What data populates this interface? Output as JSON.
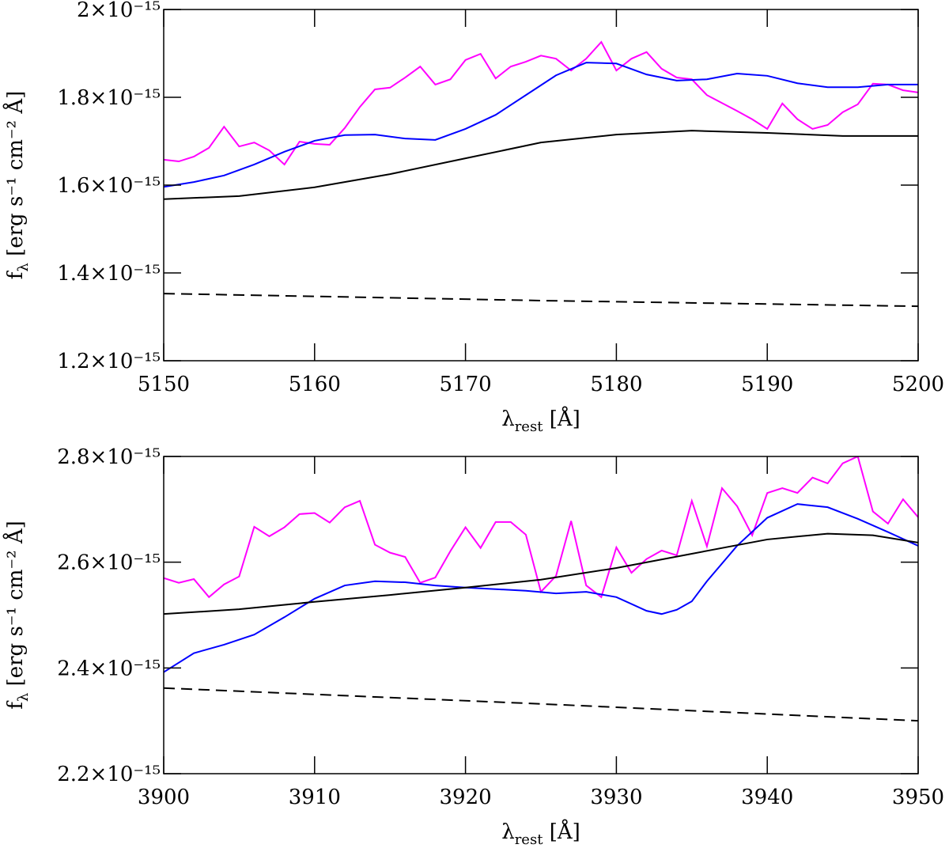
{
  "chart_data": [
    {
      "type": "line",
      "xlabel": {
        "symbol": "λ",
        "sub": "rest",
        "unit": " [Å]"
      },
      "ylabel": {
        "symbol": "f",
        "sub": "λ",
        "unit": " [erg s⁻¹ cm⁻² Å]"
      },
      "xlim": [
        5150,
        5200
      ],
      "xticks": [
        5150,
        5160,
        5170,
        5180,
        5190,
        5200
      ],
      "ylim": [
        1.2e-15,
        2e-15
      ],
      "yticks": [
        {
          "value": 1.2e-15,
          "label": "1.2×10⁻¹⁵"
        },
        {
          "value": 1.4e-15,
          "label": "1.4×10⁻¹⁵"
        },
        {
          "value": 1.6e-15,
          "label": "1.6×10⁻¹⁵"
        },
        {
          "value": 1.8e-15,
          "label": "1.8×10⁻¹⁵"
        },
        {
          "value": 2e-15,
          "label": "2×10⁻¹⁵"
        }
      ],
      "series": [
        {
          "color": "#ff00ff",
          "dashed": false,
          "x": [
            5150,
            5151,
            5152,
            5153,
            5154,
            5155,
            5156,
            5157,
            5158,
            5159,
            5160,
            5161,
            5162,
            5163,
            5164,
            5165,
            5166,
            5167,
            5168,
            5169,
            5170,
            5171,
            5172,
            5173,
            5174,
            5175,
            5176,
            5177,
            5178,
            5179,
            5180,
            5181,
            5182,
            5183,
            5184,
            5185,
            5186,
            5187,
            5188,
            5189,
            5190,
            5191,
            5192,
            5193,
            5194,
            5195,
            5196,
            5197,
            5198,
            5199,
            5200
          ],
          "values": [
            1.658e-15,
            1.654e-15,
            1.665e-15,
            1.685e-15,
            1.733e-15,
            1.688e-15,
            1.697e-15,
            1.679e-15,
            1.647e-15,
            1.699e-15,
            1.694e-15,
            1.692e-15,
            1.73e-15,
            1.778e-15,
            1.818e-15,
            1.822e-15,
            1.845e-15,
            1.87e-15,
            1.829e-15,
            1.841e-15,
            1.885e-15,
            1.899e-15,
            1.843e-15,
            1.87e-15,
            1.881e-15,
            1.895e-15,
            1.888e-15,
            1.861e-15,
            1.888e-15,
            1.926e-15,
            1.861e-15,
            1.888e-15,
            1.903e-15,
            1.865e-15,
            1.845e-15,
            1.841e-15,
            1.805e-15,
            1.787e-15,
            1.769e-15,
            1.75e-15,
            1.728e-15,
            1.786e-15,
            1.75e-15,
            1.728e-15,
            1.737e-15,
            1.766e-15,
            1.784e-15,
            1.831e-15,
            1.829e-15,
            1.816e-15,
            1.811e-15
          ]
        },
        {
          "color": "#0000ff",
          "dashed": false,
          "x": [
            5150,
            5152,
            5154,
            5156,
            5158,
            5160,
            5162,
            5164,
            5166,
            5168,
            5170,
            5172,
            5174,
            5176,
            5178,
            5180,
            5182,
            5184,
            5186,
            5188,
            5190,
            5192,
            5194,
            5196,
            5198,
            5200
          ],
          "values": [
            1.596e-15,
            1.607e-15,
            1.622e-15,
            1.647e-15,
            1.676e-15,
            1.701e-15,
            1.714e-15,
            1.715e-15,
            1.706e-15,
            1.703e-15,
            1.728e-15,
            1.76e-15,
            1.805e-15,
            1.85e-15,
            1.879e-15,
            1.877e-15,
            1.852e-15,
            1.838e-15,
            1.841e-15,
            1.854e-15,
            1.849e-15,
            1.832e-15,
            1.823e-15,
            1.823e-15,
            1.829e-15,
            1.829e-15
          ]
        },
        {
          "color": "#000000",
          "dashed": false,
          "x": [
            5150,
            5155,
            5160,
            5165,
            5170,
            5175,
            5180,
            5185,
            5190,
            5195,
            5200
          ],
          "values": [
            1.568e-15,
            1.575e-15,
            1.595e-15,
            1.625e-15,
            1.661e-15,
            1.697e-15,
            1.715e-15,
            1.724e-15,
            1.719e-15,
            1.712e-15,
            1.712e-15
          ]
        },
        {
          "color": "#000000",
          "dashed": true,
          "x": [
            5150,
            5175,
            5200
          ],
          "values": [
            1.353e-15,
            1.337e-15,
            1.324e-15
          ]
        }
      ]
    },
    {
      "type": "line",
      "xlabel": {
        "symbol": "λ",
        "sub": "rest",
        "unit": " [Å]"
      },
      "ylabel": {
        "symbol": "f",
        "sub": "λ",
        "unit": " [erg s⁻¹ cm⁻² Å]"
      },
      "xlim": [
        3900,
        3950
      ],
      "xticks": [
        3900,
        3910,
        3920,
        3930,
        3940,
        3950
      ],
      "ylim": [
        2.2e-15,
        2.8e-15
      ],
      "yticks": [
        {
          "value": 2.2e-15,
          "label": "2.2×10⁻¹⁵"
        },
        {
          "value": 2.4e-15,
          "label": "2.4×10⁻¹⁵"
        },
        {
          "value": 2.6e-15,
          "label": "2.6×10⁻¹⁵"
        },
        {
          "value": 2.8e-15,
          "label": "2.8×10⁻¹⁵"
        }
      ],
      "series": [
        {
          "color": "#ff00ff",
          "dashed": false,
          "x": [
            3900,
            3901,
            3902,
            3903,
            3904,
            3905,
            3906,
            3907,
            3908,
            3909,
            3910,
            3911,
            3912,
            3913,
            3914,
            3915,
            3916,
            3917,
            3918,
            3919,
            3920,
            3921,
            3922,
            3923,
            3924,
            3925,
            3926,
            3927,
            3928,
            3929,
            3930,
            3931,
            3932,
            3933,
            3934,
            3935,
            3936,
            3937,
            3938,
            3939,
            3940,
            3941,
            3942,
            3943,
            3944,
            3945,
            3946,
            3947,
            3948,
            3949,
            3950
          ],
          "values": [
            2.57e-15,
            2.561e-15,
            2.568e-15,
            2.534e-15,
            2.558e-15,
            2.573e-15,
            2.667e-15,
            2.649e-15,
            2.666e-15,
            2.691e-15,
            2.693e-15,
            2.675e-15,
            2.704e-15,
            2.716e-15,
            2.633e-15,
            2.618e-15,
            2.61e-15,
            2.561e-15,
            2.571e-15,
            2.621e-15,
            2.666e-15,
            2.627e-15,
            2.676e-15,
            2.676e-15,
            2.652e-15,
            2.544e-15,
            2.574e-15,
            2.678e-15,
            2.556e-15,
            2.534e-15,
            2.628e-15,
            2.58e-15,
            2.606e-15,
            2.622e-15,
            2.613e-15,
            2.716e-15,
            2.63e-15,
            2.74e-15,
            2.706e-15,
            2.651e-15,
            2.731e-15,
            2.74e-15,
            2.731e-15,
            2.76e-15,
            2.749e-15,
            2.787e-15,
            2.8e-15,
            2.696e-15,
            2.673e-15,
            2.719e-15,
            2.685e-15
          ]
        },
        {
          "color": "#0000ff",
          "dashed": false,
          "x": [
            3900,
            3902,
            3904,
            3906,
            3908,
            3910,
            3912,
            3914,
            3916,
            3918,
            3920,
            3922,
            3924,
            3926,
            3928,
            3930,
            3932,
            3933,
            3934,
            3935,
            3936,
            3938,
            3940,
            3942,
            3944,
            3946,
            3948,
            3950
          ],
          "values": [
            2.392e-15,
            2.428e-15,
            2.444e-15,
            2.463e-15,
            2.496e-15,
            2.531e-15,
            2.556e-15,
            2.564e-15,
            2.562e-15,
            2.556e-15,
            2.552e-15,
            2.549e-15,
            2.546e-15,
            2.541e-15,
            2.544e-15,
            2.534e-15,
            2.508e-15,
            2.502e-15,
            2.51e-15,
            2.526e-15,
            2.564e-15,
            2.631e-15,
            2.684e-15,
            2.71e-15,
            2.704e-15,
            2.682e-15,
            2.657e-15,
            2.631e-15
          ]
        },
        {
          "color": "#000000",
          "dashed": false,
          "x": [
            3900,
            3905,
            3910,
            3915,
            3920,
            3925,
            3930,
            3935,
            3940,
            3944,
            3947,
            3950
          ],
          "values": [
            2.502e-15,
            2.511e-15,
            2.525e-15,
            2.538e-15,
            2.552e-15,
            2.567e-15,
            2.589e-15,
            2.616e-15,
            2.643e-15,
            2.654e-15,
            2.651e-15,
            2.637e-15
          ]
        },
        {
          "color": "#000000",
          "dashed": true,
          "x": [
            3900,
            3925,
            3950
          ],
          "values": [
            2.362e-15,
            2.332e-15,
            2.3e-15
          ]
        }
      ]
    }
  ]
}
